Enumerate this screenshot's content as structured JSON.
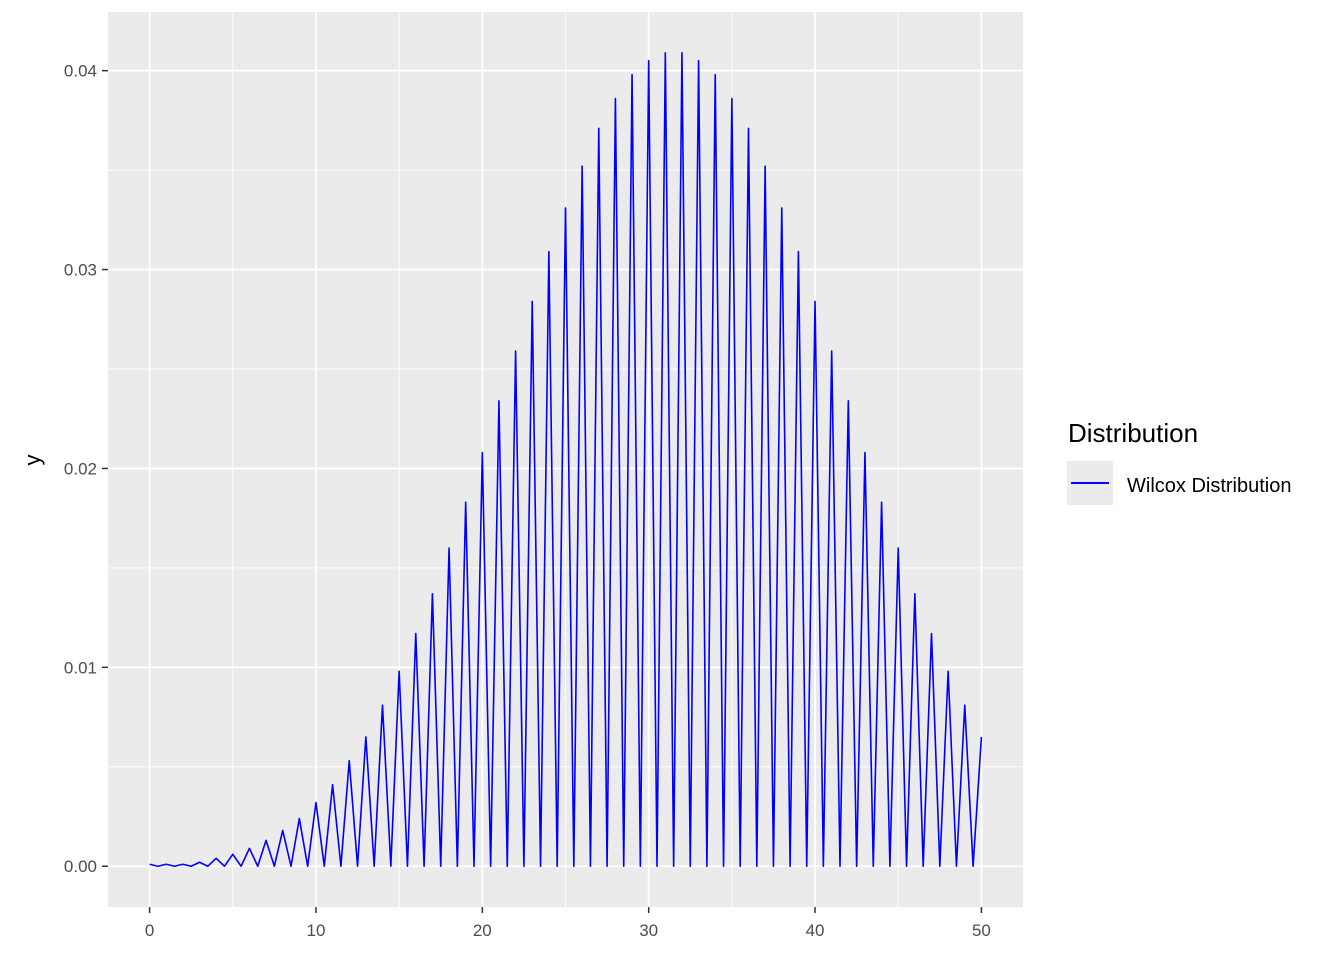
{
  "chart_data": {
    "type": "line",
    "title": "",
    "xlabel": "",
    "ylabel": "y",
    "xlim": [
      -2.5,
      52.5
    ],
    "ylim": [
      -0.00205,
      0.04295
    ],
    "x_ticks": [
      0,
      10,
      20,
      30,
      40,
      50
    ],
    "x_tick_labels": [
      "0",
      "10",
      "20",
      "30",
      "40",
      "50"
    ],
    "y_ticks": [
      0.0,
      0.01,
      0.02,
      0.03,
      0.04
    ],
    "y_tick_labels": [
      "0.00",
      "0.01",
      "0.02",
      "0.03",
      "0.04"
    ],
    "grid": true,
    "legend": {
      "title": "Distribution",
      "position": "right",
      "entries": [
        {
          "label": "Wilcox Distribution",
          "color": "#0000ff"
        }
      ]
    },
    "series": [
      {
        "name": "Wilcox Distribution",
        "color": "#0000ff",
        "peak_x": [
          0,
          1,
          2,
          3,
          4,
          5,
          6,
          7,
          8,
          9,
          10,
          11,
          12,
          13,
          14,
          15,
          16,
          17,
          18,
          19,
          20,
          21,
          22,
          23,
          24,
          25,
          26,
          27,
          28,
          29,
          30,
          31,
          32,
          33,
          34,
          35,
          36,
          37,
          38,
          39,
          40,
          41,
          42,
          43,
          44,
          45,
          46,
          47,
          48,
          49,
          50
        ],
        "peak_y": [
          0.0001,
          0.0001,
          0.0001,
          0.0002,
          0.0004,
          0.0006,
          0.0009,
          0.0013,
          0.0018,
          0.0024,
          0.0032,
          0.0041,
          0.0053,
          0.0065,
          0.0081,
          0.0098,
          0.0117,
          0.0137,
          0.016,
          0.0183,
          0.0208,
          0.0234,
          0.0259,
          0.0284,
          0.0309,
          0.0331,
          0.0352,
          0.0371,
          0.0386,
          0.0398,
          0.0405,
          0.0409,
          0.0409,
          0.0405,
          0.0398,
          0.0386,
          0.0371,
          0.0352,
          0.0331,
          0.0309,
          0.0284,
          0.0259,
          0.0234,
          0.0208,
          0.0183,
          0.016,
          0.0137,
          0.0117,
          0.0098,
          0.0081,
          0.0065
        ],
        "trough_x": [
          0.5,
          1.5,
          2.5,
          3.5,
          4.5,
          5.5,
          6.5,
          7.5,
          8.5,
          9.5,
          10.5,
          11.5,
          12.5,
          13.5,
          14.5,
          15.5,
          16.5,
          17.5,
          18.5,
          19.5,
          20.5,
          21.5,
          22.5,
          23.5,
          24.5,
          25.5,
          26.5,
          27.5,
          28.5,
          29.5,
          30.5,
          31.5,
          32.5,
          33.5,
          34.5,
          35.5,
          36.5,
          37.5,
          38.5,
          39.5,
          40.5,
          41.5,
          42.5,
          43.5,
          44.5,
          45.5,
          46.5,
          47.5,
          48.5,
          49.5
        ],
        "trough_y": 0
      }
    ]
  }
}
